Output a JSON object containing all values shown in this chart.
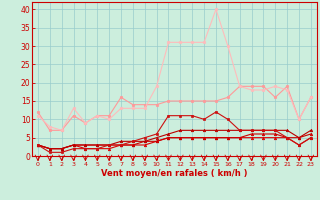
{
  "x": [
    0,
    1,
    2,
    3,
    4,
    5,
    6,
    7,
    8,
    9,
    10,
    11,
    12,
    13,
    14,
    15,
    16,
    17,
    18,
    19,
    20,
    21,
    22,
    23
  ],
  "series": [
    {
      "values": [
        3,
        2,
        2,
        3,
        2,
        2,
        2,
        3,
        3,
        3,
        4,
        5,
        5,
        5,
        5,
        5,
        5,
        5,
        5,
        5,
        5,
        5,
        3,
        5
      ],
      "color": "#dd0000",
      "lw": 0.8,
      "marker": "^",
      "ms": 1.8,
      "zorder": 3
    },
    {
      "values": [
        3,
        2,
        2,
        3,
        3,
        3,
        3,
        3,
        3,
        4,
        4,
        5,
        5,
        5,
        5,
        5,
        5,
        5,
        6,
        6,
        6,
        5,
        5,
        6
      ],
      "color": "#cc0000",
      "lw": 0.8,
      "marker": "^",
      "ms": 1.8,
      "zorder": 3
    },
    {
      "values": [
        3,
        2,
        2,
        3,
        3,
        3,
        3,
        4,
        4,
        4,
        5,
        6,
        7,
        7,
        7,
        7,
        7,
        7,
        7,
        7,
        7,
        7,
        5,
        7
      ],
      "color": "#bb0000",
      "lw": 0.8,
      "marker": "^",
      "ms": 1.8,
      "zorder": 3
    },
    {
      "values": [
        3,
        1,
        1,
        2,
        2,
        2,
        3,
        3,
        4,
        5,
        6,
        11,
        11,
        11,
        10,
        12,
        10,
        7,
        7,
        7,
        7,
        5,
        3,
        5
      ],
      "color": "#cc1111",
      "lw": 0.8,
      "marker": "s",
      "ms": 1.8,
      "zorder": 4
    },
    {
      "values": [
        12,
        7,
        7,
        11,
        9,
        11,
        11,
        16,
        14,
        14,
        14,
        15,
        15,
        15,
        15,
        15,
        16,
        19,
        19,
        19,
        16,
        19,
        10,
        16
      ],
      "color": "#ff9999",
      "lw": 0.8,
      "marker": "o",
      "ms": 1.8,
      "zorder": 2
    },
    {
      "values": [
        11,
        8,
        7,
        13,
        9,
        11,
        10,
        13,
        13,
        13,
        19,
        31,
        31,
        31,
        31,
        40,
        30,
        19,
        18,
        18,
        19,
        18,
        10,
        16
      ],
      "color": "#ffbbbb",
      "lw": 0.8,
      "marker": "o",
      "ms": 1.8,
      "zorder": 2
    }
  ],
  "bg_color": "#cceedd",
  "grid_color": "#99cccc",
  "tick_color": "#cc0000",
  "xlabel": "Vent moyen/en rafales ( km/h )",
  "xlabel_color": "#cc0000",
  "xlabel_fontsize": 6.0,
  "ylim": [
    0,
    42
  ],
  "yticks": [
    0,
    5,
    10,
    15,
    20,
    25,
    30,
    35,
    40
  ],
  "ytick_fontsize": 5.5,
  "xtick_fontsize": 4.5
}
